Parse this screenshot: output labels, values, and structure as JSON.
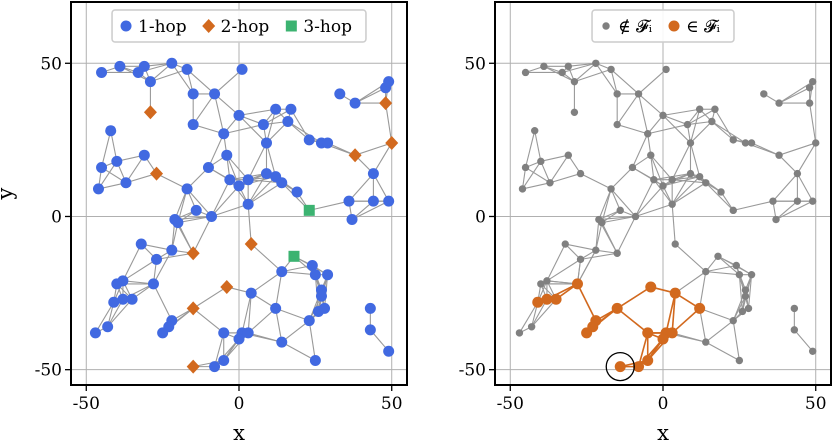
{
  "chart_data": [
    {
      "type": "scatter",
      "subtype": "graph",
      "xlabel": "x",
      "ylabel": "y",
      "xlim": [
        -55,
        55
      ],
      "ylim": [
        -55,
        70
      ],
      "xticks": [
        -50,
        0,
        50
      ],
      "yticks": [
        -50,
        0,
        50
      ],
      "grid": true,
      "legend": "top-center",
      "edge_color": "#999999",
      "series": [
        {
          "name": "1-hop",
          "marker": "circle",
          "color": "#4169e1",
          "points": [
            [
              -45,
              47
            ],
            [
              -39,
              49
            ],
            [
              -33,
              47
            ],
            [
              -31,
              49
            ],
            [
              -29,
              44
            ],
            [
              -22,
              50
            ],
            [
              -17,
              48
            ],
            [
              -15,
              40
            ],
            [
              -8,
              40
            ],
            [
              1,
              48
            ],
            [
              -42,
              28
            ],
            [
              -40,
              18
            ],
            [
              -37,
              11
            ],
            [
              -31,
              20
            ],
            [
              -45,
              16
            ],
            [
              -46,
              9
            ],
            [
              -15,
              30
            ],
            [
              -5,
              27
            ],
            [
              -4,
              20
            ],
            [
              -10,
              16
            ],
            [
              0,
              33
            ],
            [
              8,
              30
            ],
            [
              12,
              35
            ],
            [
              17,
              35
            ],
            [
              16,
              31
            ],
            [
              9,
              24
            ],
            [
              23,
              25
            ],
            [
              27,
              24
            ],
            [
              29,
              24
            ],
            [
              33,
              40
            ],
            [
              38,
              37
            ],
            [
              48,
              42
            ],
            [
              49,
              44
            ],
            [
              -17,
              9
            ],
            [
              -14,
              2
            ],
            [
              -9,
              0
            ],
            [
              -3,
              12
            ],
            [
              0,
              10
            ],
            [
              3,
              12
            ],
            [
              9,
              14
            ],
            [
              12,
              13
            ],
            [
              14,
              11
            ],
            [
              19,
              8
            ],
            [
              3,
              4
            ],
            [
              36,
              5
            ],
            [
              44,
              14
            ],
            [
              44,
              5
            ],
            [
              49,
              5
            ],
            [
              37,
              -1
            ],
            [
              -21,
              -1
            ],
            [
              -20,
              -2
            ],
            [
              -22,
              -11
            ],
            [
              -27,
              -14
            ],
            [
              -32,
              -9
            ],
            [
              -40,
              -22
            ],
            [
              -38,
              -21
            ],
            [
              -41,
              -28
            ],
            [
              -38,
              -27
            ],
            [
              -35,
              -27
            ],
            [
              -28,
              -22
            ],
            [
              -22,
              -34
            ],
            [
              -23,
              -36
            ],
            [
              -25,
              -38
            ],
            [
              -47,
              -38
            ],
            [
              -43,
              -36
            ],
            [
              -5,
              -38
            ],
            [
              1,
              -38
            ],
            [
              4,
              -25
            ],
            [
              0,
              -40
            ],
            [
              3,
              -38
            ],
            [
              12,
              -30
            ],
            [
              14,
              -18
            ],
            [
              14,
              -41
            ],
            [
              24,
              -16
            ],
            [
              25,
              -19
            ],
            [
              29,
              -19
            ],
            [
              27,
              -24
            ],
            [
              27,
              -26
            ],
            [
              26,
              -31
            ],
            [
              28,
              -30
            ],
            [
              23,
              -34
            ],
            [
              43,
              -30
            ],
            [
              43,
              -37
            ],
            [
              49,
              -44
            ],
            [
              25,
              -47
            ],
            [
              -5,
              -47
            ],
            [
              -8,
              -49
            ]
          ]
        },
        {
          "name": "2-hop",
          "marker": "diamond",
          "color": "#d2691e",
          "points": [
            [
              -29,
              34
            ],
            [
              48,
              37
            ],
            [
              50,
              24
            ],
            [
              38,
              20
            ],
            [
              -27,
              14
            ],
            [
              4,
              -9
            ],
            [
              -15,
              -12
            ],
            [
              -15,
              -30
            ],
            [
              -4,
              -23
            ],
            [
              -15,
              -49
            ]
          ]
        },
        {
          "name": "3-hop",
          "marker": "square",
          "color": "#3cb371",
          "points": [
            [
              23,
              2
            ],
            [
              18,
              -13
            ]
          ]
        }
      ]
    },
    {
      "type": "scatter",
      "subtype": "graph",
      "xlabel": "x",
      "ylabel": "",
      "xlim": [
        -55,
        55
      ],
      "ylim": [
        -55,
        70
      ],
      "xticks": [
        -50,
        0,
        50
      ],
      "yticks": [
        -50,
        0,
        50
      ],
      "grid": true,
      "legend": "top-center",
      "edge_color": "#999999",
      "highlight_circle": [
        -14,
        -49
      ],
      "series": [
        {
          "name": "∉ 𝓕ᵢ",
          "marker": "circle-small",
          "color": "#808080",
          "points": [
            [
              -45,
              47
            ],
            [
              -39,
              49
            ],
            [
              -33,
              47
            ],
            [
              -31,
              49
            ],
            [
              -29,
              44
            ],
            [
              -22,
              50
            ],
            [
              -17,
              48
            ],
            [
              -15,
              40
            ],
            [
              -8,
              40
            ],
            [
              1,
              48
            ],
            [
              -42,
              28
            ],
            [
              -40,
              18
            ],
            [
              -37,
              11
            ],
            [
              -31,
              20
            ],
            [
              -45,
              16
            ],
            [
              -46,
              9
            ],
            [
              -15,
              30
            ],
            [
              -5,
              27
            ],
            [
              -4,
              20
            ],
            [
              -10,
              16
            ],
            [
              0,
              33
            ],
            [
              8,
              30
            ],
            [
              12,
              35
            ],
            [
              17,
              35
            ],
            [
              16,
              31
            ],
            [
              9,
              24
            ],
            [
              23,
              25
            ],
            [
              27,
              24
            ],
            [
              29,
              24
            ],
            [
              33,
              40
            ],
            [
              38,
              37
            ],
            [
              48,
              42
            ],
            [
              49,
              44
            ],
            [
              -17,
              9
            ],
            [
              -14,
              2
            ],
            [
              -9,
              0
            ],
            [
              -3,
              12
            ],
            [
              0,
              10
            ],
            [
              3,
              12
            ],
            [
              9,
              14
            ],
            [
              12,
              13
            ],
            [
              14,
              11
            ],
            [
              19,
              8
            ],
            [
              3,
              4
            ],
            [
              36,
              5
            ],
            [
              44,
              14
            ],
            [
              44,
              5
            ],
            [
              49,
              5
            ],
            [
              37,
              -1
            ],
            [
              -21,
              -1
            ],
            [
              -20,
              -2
            ],
            [
              -22,
              -11
            ],
            [
              -27,
              -14
            ],
            [
              -32,
              -9
            ],
            [
              -40,
              -22
            ],
            [
              -38,
              -21
            ],
            [
              -28,
              -22
            ],
            [
              14,
              -18
            ],
            [
              24,
              -16
            ],
            [
              25,
              -19
            ],
            [
              29,
              -19
            ],
            [
              27,
              -24
            ],
            [
              27,
              -26
            ],
            [
              26,
              -31
            ],
            [
              28,
              -30
            ],
            [
              23,
              -34
            ],
            [
              43,
              -30
            ],
            [
              43,
              -37
            ],
            [
              49,
              -44
            ],
            [
              25,
              -47
            ],
            [
              14,
              -41
            ],
            [
              4,
              -9
            ],
            [
              -4,
              -23
            ],
            [
              18,
              -13
            ],
            [
              23,
              2
            ],
            [
              -29,
              34
            ],
            [
              48,
              37
            ],
            [
              50,
              24
            ],
            [
              38,
              20
            ],
            [
              -27,
              14
            ],
            [
              -15,
              -12
            ],
            [
              -47,
              -38
            ],
            [
              -43,
              -36
            ]
          ]
        },
        {
          "name": "∈ 𝓕ᵢ",
          "marker": "circle",
          "color": "#d2691e",
          "points": [
            [
              -41,
              -28
            ],
            [
              -38,
              -27
            ],
            [
              -35,
              -27
            ],
            [
              -28,
              -22
            ],
            [
              -22,
              -34
            ],
            [
              -23,
              -36
            ],
            [
              -25,
              -38
            ],
            [
              -15,
              -30
            ],
            [
              -14,
              -49
            ],
            [
              -8,
              -49
            ],
            [
              -5,
              -47
            ],
            [
              -5,
              -38
            ],
            [
              1,
              -38
            ],
            [
              0,
              -40
            ],
            [
              3,
              -38
            ],
            [
              4,
              -25
            ],
            [
              12,
              -30
            ],
            [
              -4,
              -23
            ]
          ]
        }
      ]
    }
  ]
}
